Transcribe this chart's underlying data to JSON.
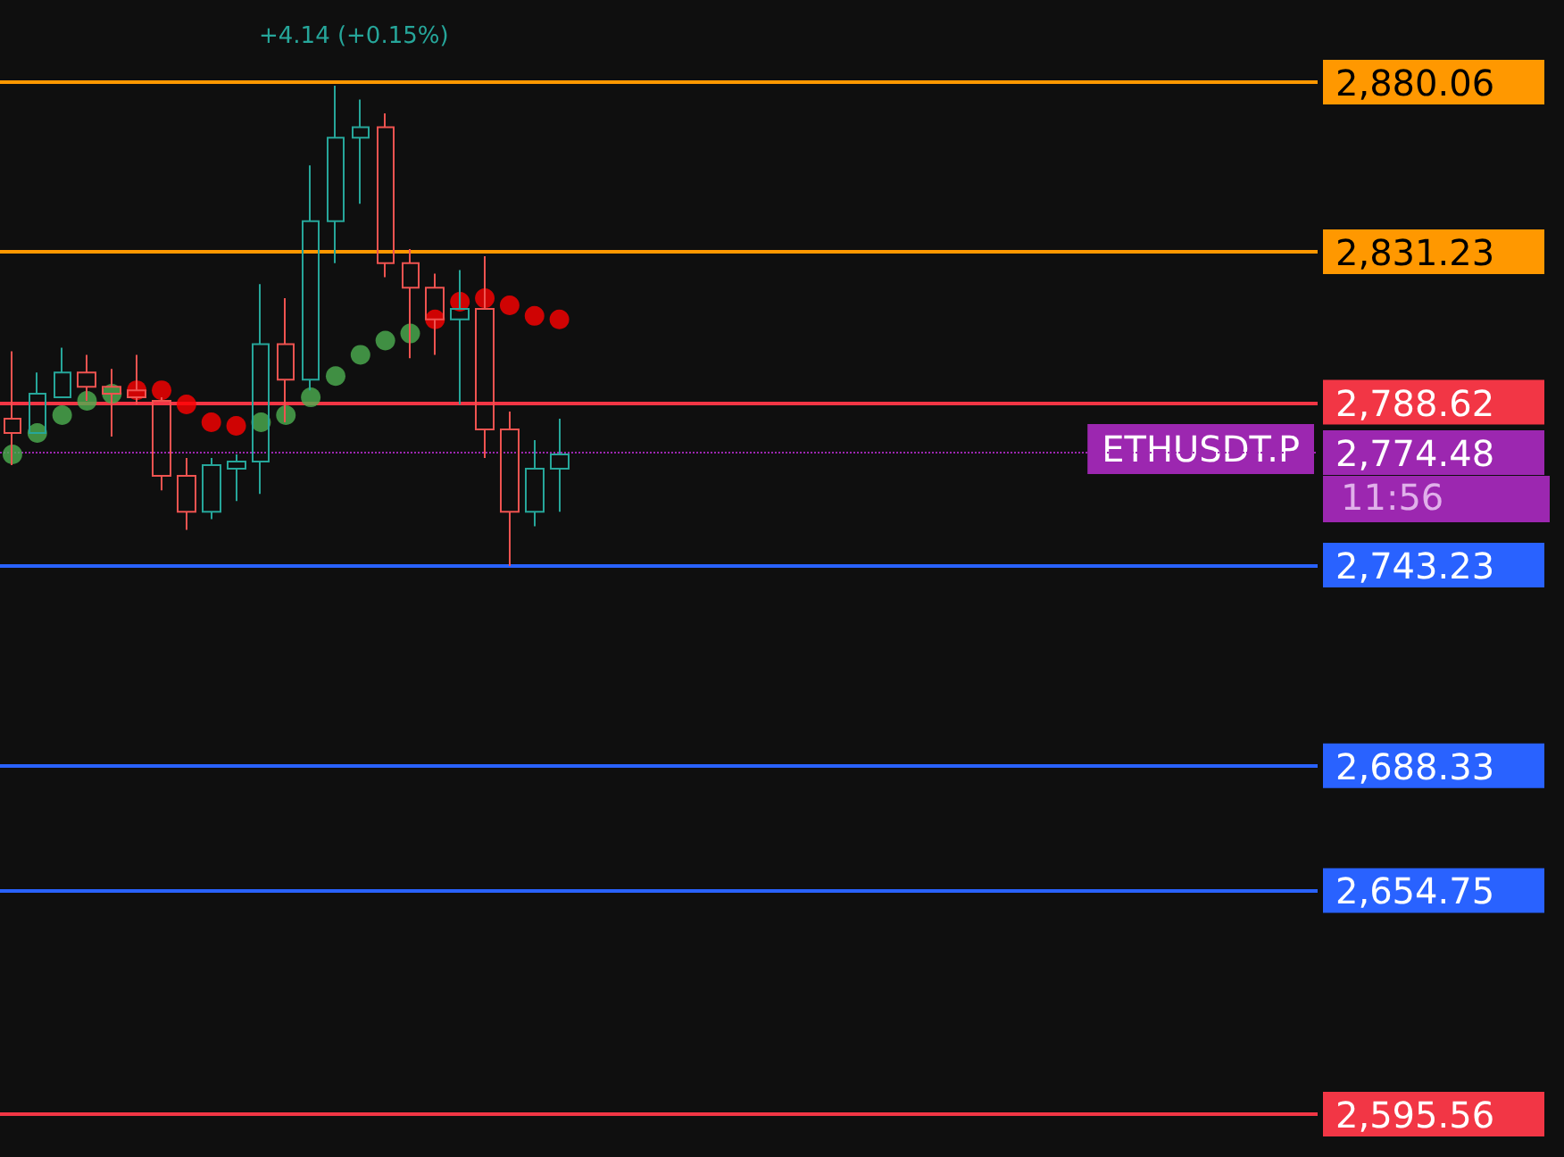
{
  "chart_data": {
    "type": "candlestick",
    "log": true,
    "tick_labels": "y",
    "ylim": [
      2595.56,
      2880.06
    ],
    "yticks": [
      {
        "value": 2880.06,
        "label": "2,880.06"
      },
      {
        "value": 2831.23,
        "label": "2,831.23"
      },
      {
        "value": 2788.62,
        "label": "2,788.62"
      },
      {
        "value": 2774.48,
        "label": "2,774.48"
      },
      {
        "value": 2743.23,
        "label": "2,743.23"
      },
      {
        "value": 2688.33,
        "label": "2,688.33"
      },
      {
        "value": 2654.75,
        "label": "2,654.75"
      },
      {
        "value": 2595.56,
        "label": "2,595.56"
      }
    ],
    "categories": [
      null,
      null,
      null,
      null,
      null,
      null,
      null,
      null,
      null,
      null,
      null,
      null,
      null,
      null,
      null,
      null,
      null,
      null,
      null,
      null,
      null,
      null,
      null,
      null,
      null,
      null,
      null,
      null,
      null,
      null,
      null,
      null,
      null,
      null,
      null,
      null,
      null,
      null,
      null,
      null,
      null,
      null,
      null,
      null,
      null,
      null,
      null,
      null,
      null,
      null,
      null,
      null,
      null
    ],
    "ohlc": [
      [
        2784,
        2803,
        2771,
        2780
      ],
      [
        2780,
        2797,
        2780,
        2791
      ],
      [
        2790,
        2804,
        2790,
        2797
      ],
      [
        2797,
        2802,
        2789,
        2793
      ],
      [
        2793,
        2798,
        2779,
        2791
      ],
      [
        2792,
        2802,
        2788,
        2790
      ],
      [
        2789,
        2790,
        2764,
        2768
      ],
      [
        2768,
        2773,
        2753,
        2758
      ],
      [
        2758,
        2773,
        2756,
        2771
      ],
      [
        2770,
        2774,
        2761,
        2772
      ],
      [
        2772,
        2822,
        2763,
        2805
      ],
      [
        2805,
        2818,
        2783,
        2795
      ],
      [
        2795,
        2856,
        2792,
        2840
      ],
      [
        2840,
        2879,
        2828,
        2864
      ],
      [
        2864,
        2875,
        2845,
        2867
      ],
      [
        2867,
        2871,
        2824,
        2828
      ],
      [
        2828,
        2832,
        2801,
        2821
      ],
      [
        2821,
        2825,
        2802,
        2812
      ],
      [
        2812,
        2826,
        2788,
        2815
      ],
      [
        2815,
        2830,
        2773,
        2781
      ],
      [
        2781,
        2786,
        2743,
        2758
      ],
      [
        2758,
        2778,
        2754,
        2770
      ],
      [
        2770,
        2784,
        2758,
        2774
      ],
      null,
      null,
      null,
      null,
      null,
      null,
      null,
      null,
      null,
      null,
      null,
      null,
      null,
      null,
      null,
      null,
      null,
      null,
      null,
      null,
      null,
      null,
      null,
      null,
      null,
      null,
      null,
      null,
      null,
      null
    ],
    "series": [
      {
        "type": "scatter",
        "color": "#4caf50",
        "marker": "circle",
        "values": [
          2774,
          2780,
          2785,
          2789,
          2791,
          null,
          null,
          null,
          null,
          null,
          2783,
          2785,
          2790,
          2796,
          2802,
          2806,
          2808,
          null,
          null,
          null,
          null,
          null,
          null,
          null,
          null,
          null,
          null,
          null,
          null,
          null,
          null,
          null,
          null,
          null,
          null,
          null,
          null,
          null,
          null,
          null,
          null,
          null,
          null,
          null,
          null,
          null,
          null,
          null,
          null,
          null,
          null,
          null,
          null
        ]
      },
      {
        "type": "scatter",
        "color": "#ff0000",
        "marker": "circle",
        "values": [
          null,
          null,
          null,
          null,
          null,
          2792,
          2792,
          2788,
          2783,
          2782,
          null,
          null,
          null,
          null,
          null,
          null,
          null,
          2812,
          2817,
          2818,
          2816,
          2813,
          2812,
          null,
          null,
          null,
          null,
          null,
          null,
          null,
          null,
          null,
          null,
          null,
          null,
          null,
          null,
          null,
          null,
          null,
          null,
          null,
          null,
          null,
          null,
          null,
          null,
          null,
          null,
          null,
          null,
          null,
          null
        ]
      }
    ],
    "ref_lines": [
      {
        "axis": "y",
        "value": 2880.06,
        "color": "#ff9800",
        "line_style": "solid"
      },
      {
        "axis": "y",
        "value": 2831.23,
        "color": "#ff9800",
        "line_style": "solid"
      },
      {
        "axis": "y",
        "value": 2788.62,
        "color": "#f23645",
        "line_style": "solid"
      },
      {
        "axis": "y",
        "value": 2774.48,
        "color": "#9c27b0",
        "line_style": "dotted"
      },
      {
        "axis": "y",
        "value": 2743.23,
        "color": "#2962ff",
        "line_style": "solid"
      },
      {
        "axis": "y",
        "value": 2688.33,
        "color": "#2962ff",
        "line_style": "solid"
      },
      {
        "axis": "y",
        "value": 2654.75,
        "color": "#2962ff",
        "line_style": "solid"
      },
      {
        "axis": "y",
        "value": 2595.56,
        "color": "#f23645",
        "line_style": "solid"
      }
    ],
    "annotations": [
      "+4.14 (+0.15%)",
      {
        "text": "ETHUSDT.P",
        "y": 2774.48
      },
      "11:56"
    ]
  }
}
